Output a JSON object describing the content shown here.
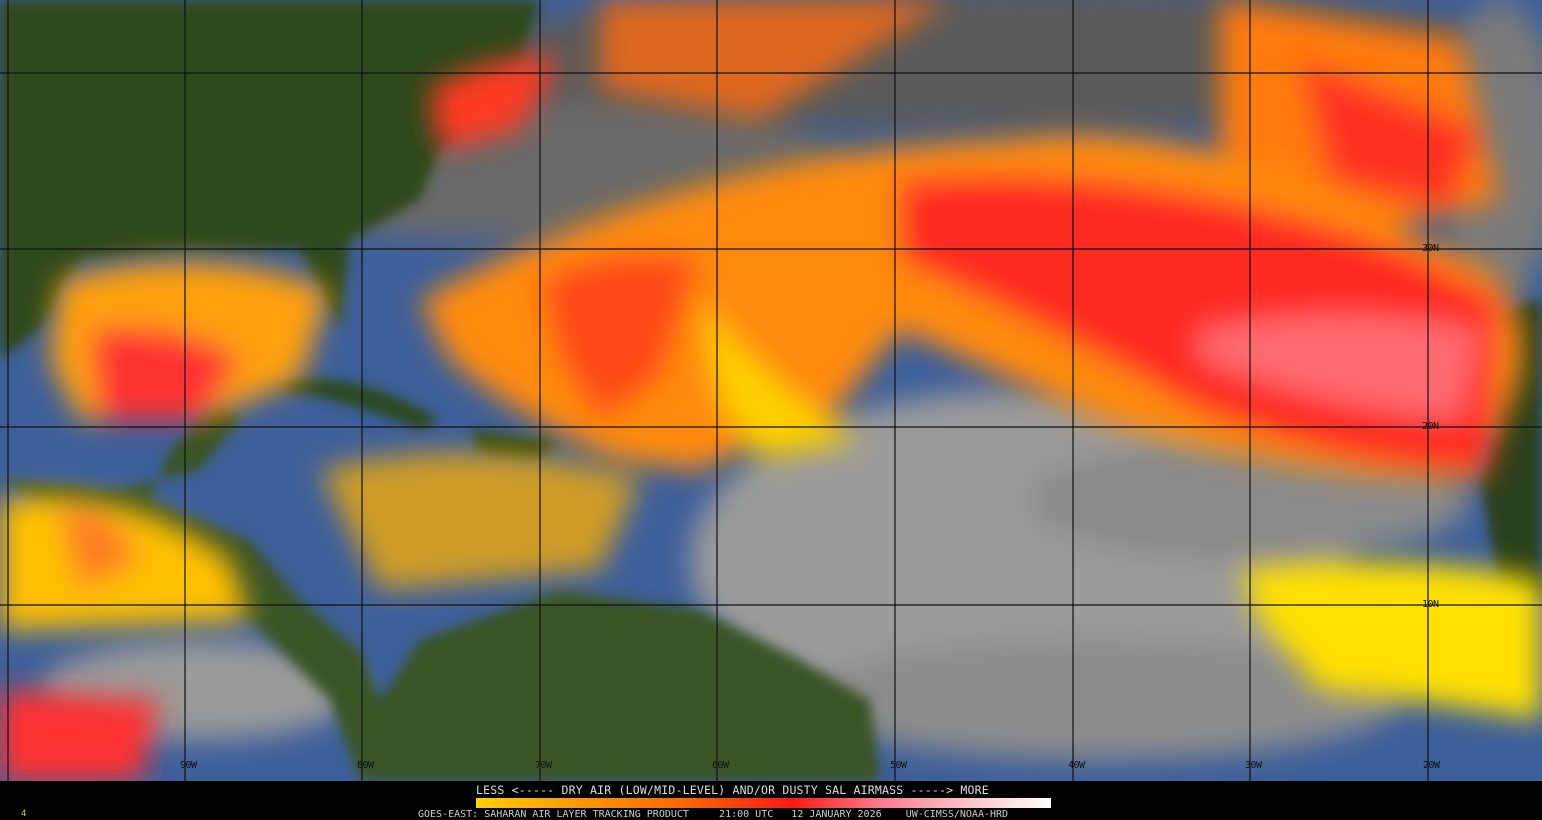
{
  "product": {
    "legend_title": "LESS <----- DRY AIR (LOW/MID-LEVEL) AND/OR DUSTY SAL AIRMASS -----> MORE",
    "footer": {
      "satellite": "GOES-EAST: SAHARAN AIR LAYER TRACKING PRODUCT",
      "time": "21:00 UTC",
      "date": "12 JANUARY 2026",
      "credit": "UW-CIMSS/NOAA-HRD"
    },
    "corner_mark": "4"
  },
  "scale": {
    "low_label": "LESS",
    "high_label": "MORE",
    "colors": [
      "#ffd000",
      "#ffa000",
      "#ff6a00",
      "#ff1a10",
      "#ff7a8a",
      "#ffc0c8",
      "#ffffff"
    ]
  },
  "grid": {
    "longitude_labels": [
      "90W",
      "80W",
      "70W",
      "60W",
      "50W",
      "40W",
      "30W",
      "20W"
    ],
    "latitude_labels": [
      "30N",
      "20N",
      "10N"
    ]
  },
  "colors": {
    "ocean": "#3d5f9a",
    "land": "#2f4a1c",
    "cloud": "#8a8a8a",
    "dust_low": "#ffd000",
    "dust_high": "#ff2020"
  }
}
